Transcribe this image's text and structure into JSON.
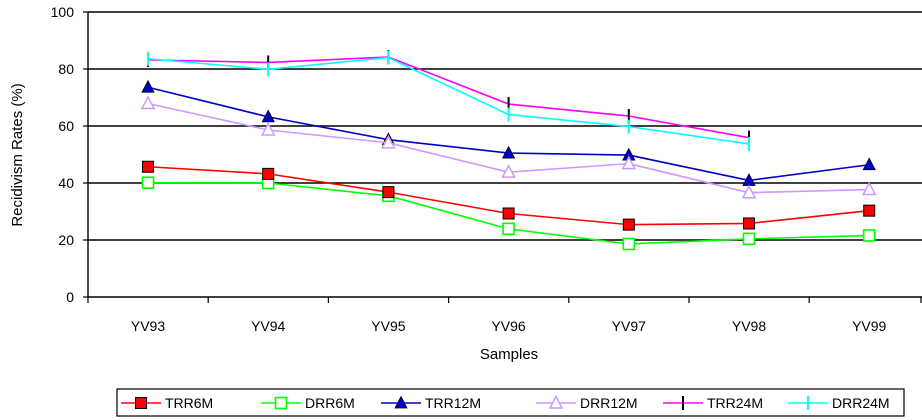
{
  "chart_data": {
    "type": "line",
    "title": "",
    "xlabel": "Samples",
    "ylabel": "Recidivism Rates (%)",
    "ylim": [
      0,
      100
    ],
    "yticks": [
      "0",
      "20",
      "40",
      "60",
      "80",
      "100"
    ],
    "categories": [
      "YV93",
      "YV94",
      "YV95",
      "YV96",
      "YV97",
      "YV98",
      "YV99"
    ],
    "grid": "horizontal",
    "legend_position": "bottom",
    "series": [
      {
        "name": "TRR6M",
        "color": "#ff0000",
        "marker": "filled-square",
        "values": [
          45.7,
          43.2,
          36.8,
          29.3,
          25.4,
          25.8,
          30.3
        ]
      },
      {
        "name": "DRR6M",
        "color": "#00ff00",
        "marker": "open-square",
        "values": [
          40.1,
          40.0,
          35.5,
          23.9,
          18.6,
          20.4,
          21.6
        ]
      },
      {
        "name": "TRR12M",
        "color": "#0000cc",
        "marker": "filled-triangle",
        "values": [
          73.6,
          63.2,
          55.2,
          50.5,
          49.8,
          40.9,
          46.4
        ]
      },
      {
        "name": "DRR12M",
        "color": "#cc99ff",
        "marker": "open-triangle",
        "values": [
          67.9,
          58.6,
          54.1,
          43.8,
          46.8,
          36.6,
          37.7
        ]
      },
      {
        "name": "TRR24M",
        "color": "#ff00ff",
        "marker": "vertical-bar",
        "values": [
          83.2,
          82.3,
          84.2,
          67.7,
          63.5,
          55.9,
          null
        ]
      },
      {
        "name": "DRR24M",
        "color": "#00ffff",
        "marker": "plus",
        "values": [
          83.6,
          79.9,
          84.0,
          64.0,
          59.8,
          53.7,
          null
        ]
      }
    ]
  }
}
